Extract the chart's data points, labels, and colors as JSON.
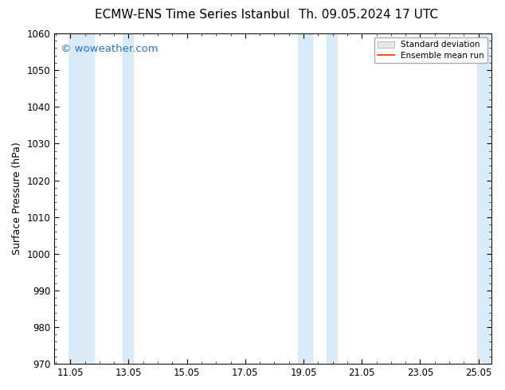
{
  "title_left": "ECMW-ENS Time Series Istanbul",
  "title_right": "Th. 09.05.2024 17 UTC",
  "ylabel": "Surface Pressure (hPa)",
  "ylim": [
    970,
    1060
  ],
  "yticks": [
    970,
    980,
    990,
    1000,
    1010,
    1020,
    1030,
    1040,
    1050,
    1060
  ],
  "xlim_start": 10.5,
  "xlim_end": 25.5,
  "xtick_labels": [
    "11.05",
    "13.05",
    "15.05",
    "17.05",
    "19.05",
    "21.05",
    "23.05",
    "25.05"
  ],
  "xtick_positions": [
    11.05,
    13.05,
    15.05,
    17.05,
    19.05,
    21.05,
    23.05,
    25.05
  ],
  "shaded_bands": [
    {
      "x_start": 11.0,
      "x_end": 11.85
    },
    {
      "x_start": 12.85,
      "x_end": 13.2
    },
    {
      "x_start": 18.85,
      "x_end": 19.35
    },
    {
      "x_start": 19.85,
      "x_end": 20.2
    },
    {
      "x_start": 25.0,
      "x_end": 25.5
    }
  ],
  "shade_color": "#daeaf6",
  "background_color": "#ffffff",
  "plot_bg_color": "#ffffff",
  "watermark_text": "© woweather.com",
  "watermark_color": "#2277dd",
  "legend_mean_color": "#ff2200",
  "title_fontsize": 11,
  "ylabel_fontsize": 9,
  "tick_fontsize": 8.5,
  "watermark_fontsize": 9.5
}
